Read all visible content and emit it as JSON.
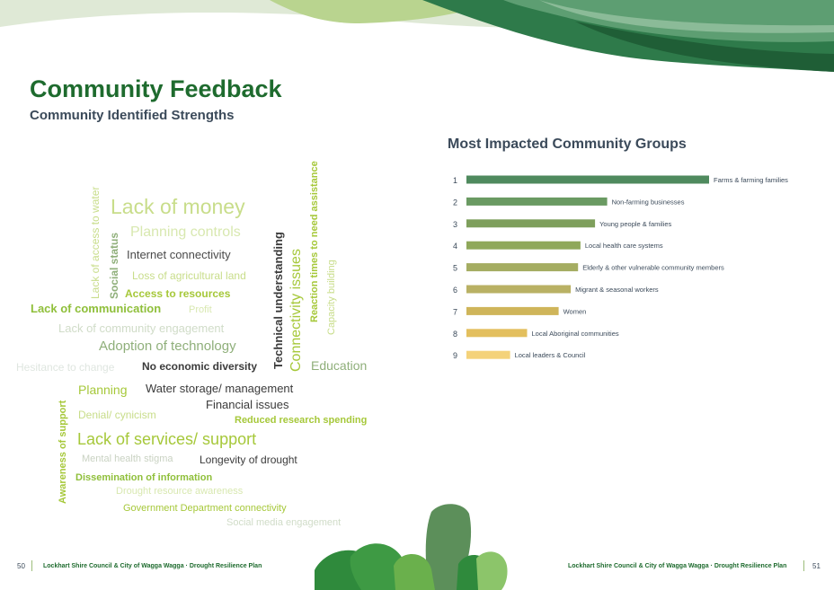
{
  "header": {
    "title": "Community Feedback",
    "subtitle": "Community Identified Strengths"
  },
  "word_cloud": [
    {
      "text": "Lack of money",
      "color": "#c8dd8a"
    },
    {
      "text": "Planning controls",
      "color": "#d8e8b0"
    },
    {
      "text": "Internet connectivity",
      "color": "#4a4a4a"
    },
    {
      "text": "Loss of agricultural land",
      "color": "#c8dd8a"
    },
    {
      "text": "Access to resources",
      "color": "#a6c83a"
    },
    {
      "text": "Lack of communication",
      "color": "#8fbf3a"
    },
    {
      "text": "Profit",
      "color": "#d8e8b0"
    },
    {
      "text": "Lack of community engagement",
      "color": "#d0dcc8"
    },
    {
      "text": "Adoption of technology",
      "color": "#8faf7a"
    },
    {
      "text": "Hesitance to change",
      "color": "#dfe6e0"
    },
    {
      "text": "No economic diversity",
      "color": "#3b3b3b"
    },
    {
      "text": "Education",
      "color": "#8faf7a"
    },
    {
      "text": "Planning",
      "color": "#a6c83a"
    },
    {
      "text": "Water storage/ management",
      "color": "#3b3b3b"
    },
    {
      "text": "Financial issues",
      "color": "#3b3b3b"
    },
    {
      "text": "Denial/ cynicism",
      "color": "#c8dd8a"
    },
    {
      "text": "Reduced research spending",
      "color": "#a6c83a"
    },
    {
      "text": "Lack of services/ support",
      "color": "#a6c83a"
    },
    {
      "text": "Mental health stigma",
      "color": "#c9d2c2"
    },
    {
      "text": "Longevity of drought",
      "color": "#3b3b3b"
    },
    {
      "text": "Dissemination of information",
      "color": "#8fbf3a"
    },
    {
      "text": "Drought resource awareness",
      "color": "#d8e8b0"
    },
    {
      "text": "Government Department connectivity",
      "color": "#a6c83a"
    },
    {
      "text": "Social media engagement",
      "color": "#d0dcc8"
    }
  ],
  "word_cloud_vertical": [
    {
      "text": "Lack of access to water",
      "color": "#c8dd8a"
    },
    {
      "text": "Social status",
      "color": "#8faf7a"
    },
    {
      "text": "Technical understanding",
      "color": "#3b3b3b"
    },
    {
      "text": "Connectivity issues",
      "color": "#a6c83a"
    },
    {
      "text": "Reaction times to need assistance",
      "color": "#a6c83a"
    },
    {
      "text": "Capacity building",
      "color": "#c8dd8a"
    },
    {
      "text": "Awareness of support",
      "color": "#a6c83a"
    }
  ],
  "chart_data": {
    "type": "bar",
    "orientation": "horizontal",
    "title": "Most Impacted Community Groups",
    "ranks": [
      "1",
      "2",
      "3",
      "4",
      "5",
      "6",
      "7",
      "8",
      "9"
    ],
    "categories": [
      "Farms & farming families",
      "Non-farming businesses",
      "Young people & families",
      "Local health care systems",
      "Elderly & other vulnerable community members",
      "Migrant & seasonal workers",
      "Women",
      "Local Aboriginal communities",
      "Local leaders & Council"
    ],
    "values": [
      100,
      58,
      53,
      47,
      46,
      43,
      38,
      25,
      18
    ],
    "bar_colors": [
      "#4f8a5e",
      "#6a9a62",
      "#7e9f5c",
      "#8fa85a",
      "#a5ad62",
      "#b9b164",
      "#cfb55a",
      "#e3bf5e",
      "#f4d27a"
    ],
    "xlim": [
      0,
      100
    ],
    "grid": false,
    "legend": "none"
  },
  "footer": {
    "left_page": "50",
    "left_text": "Lockhart Shire Council & City of Wagga Wagga · Drought Resilience Plan",
    "right_text": "Lockhart Shire Council & City of Wagga Wagga · Drought Resilience Plan",
    "right_page": "51"
  }
}
